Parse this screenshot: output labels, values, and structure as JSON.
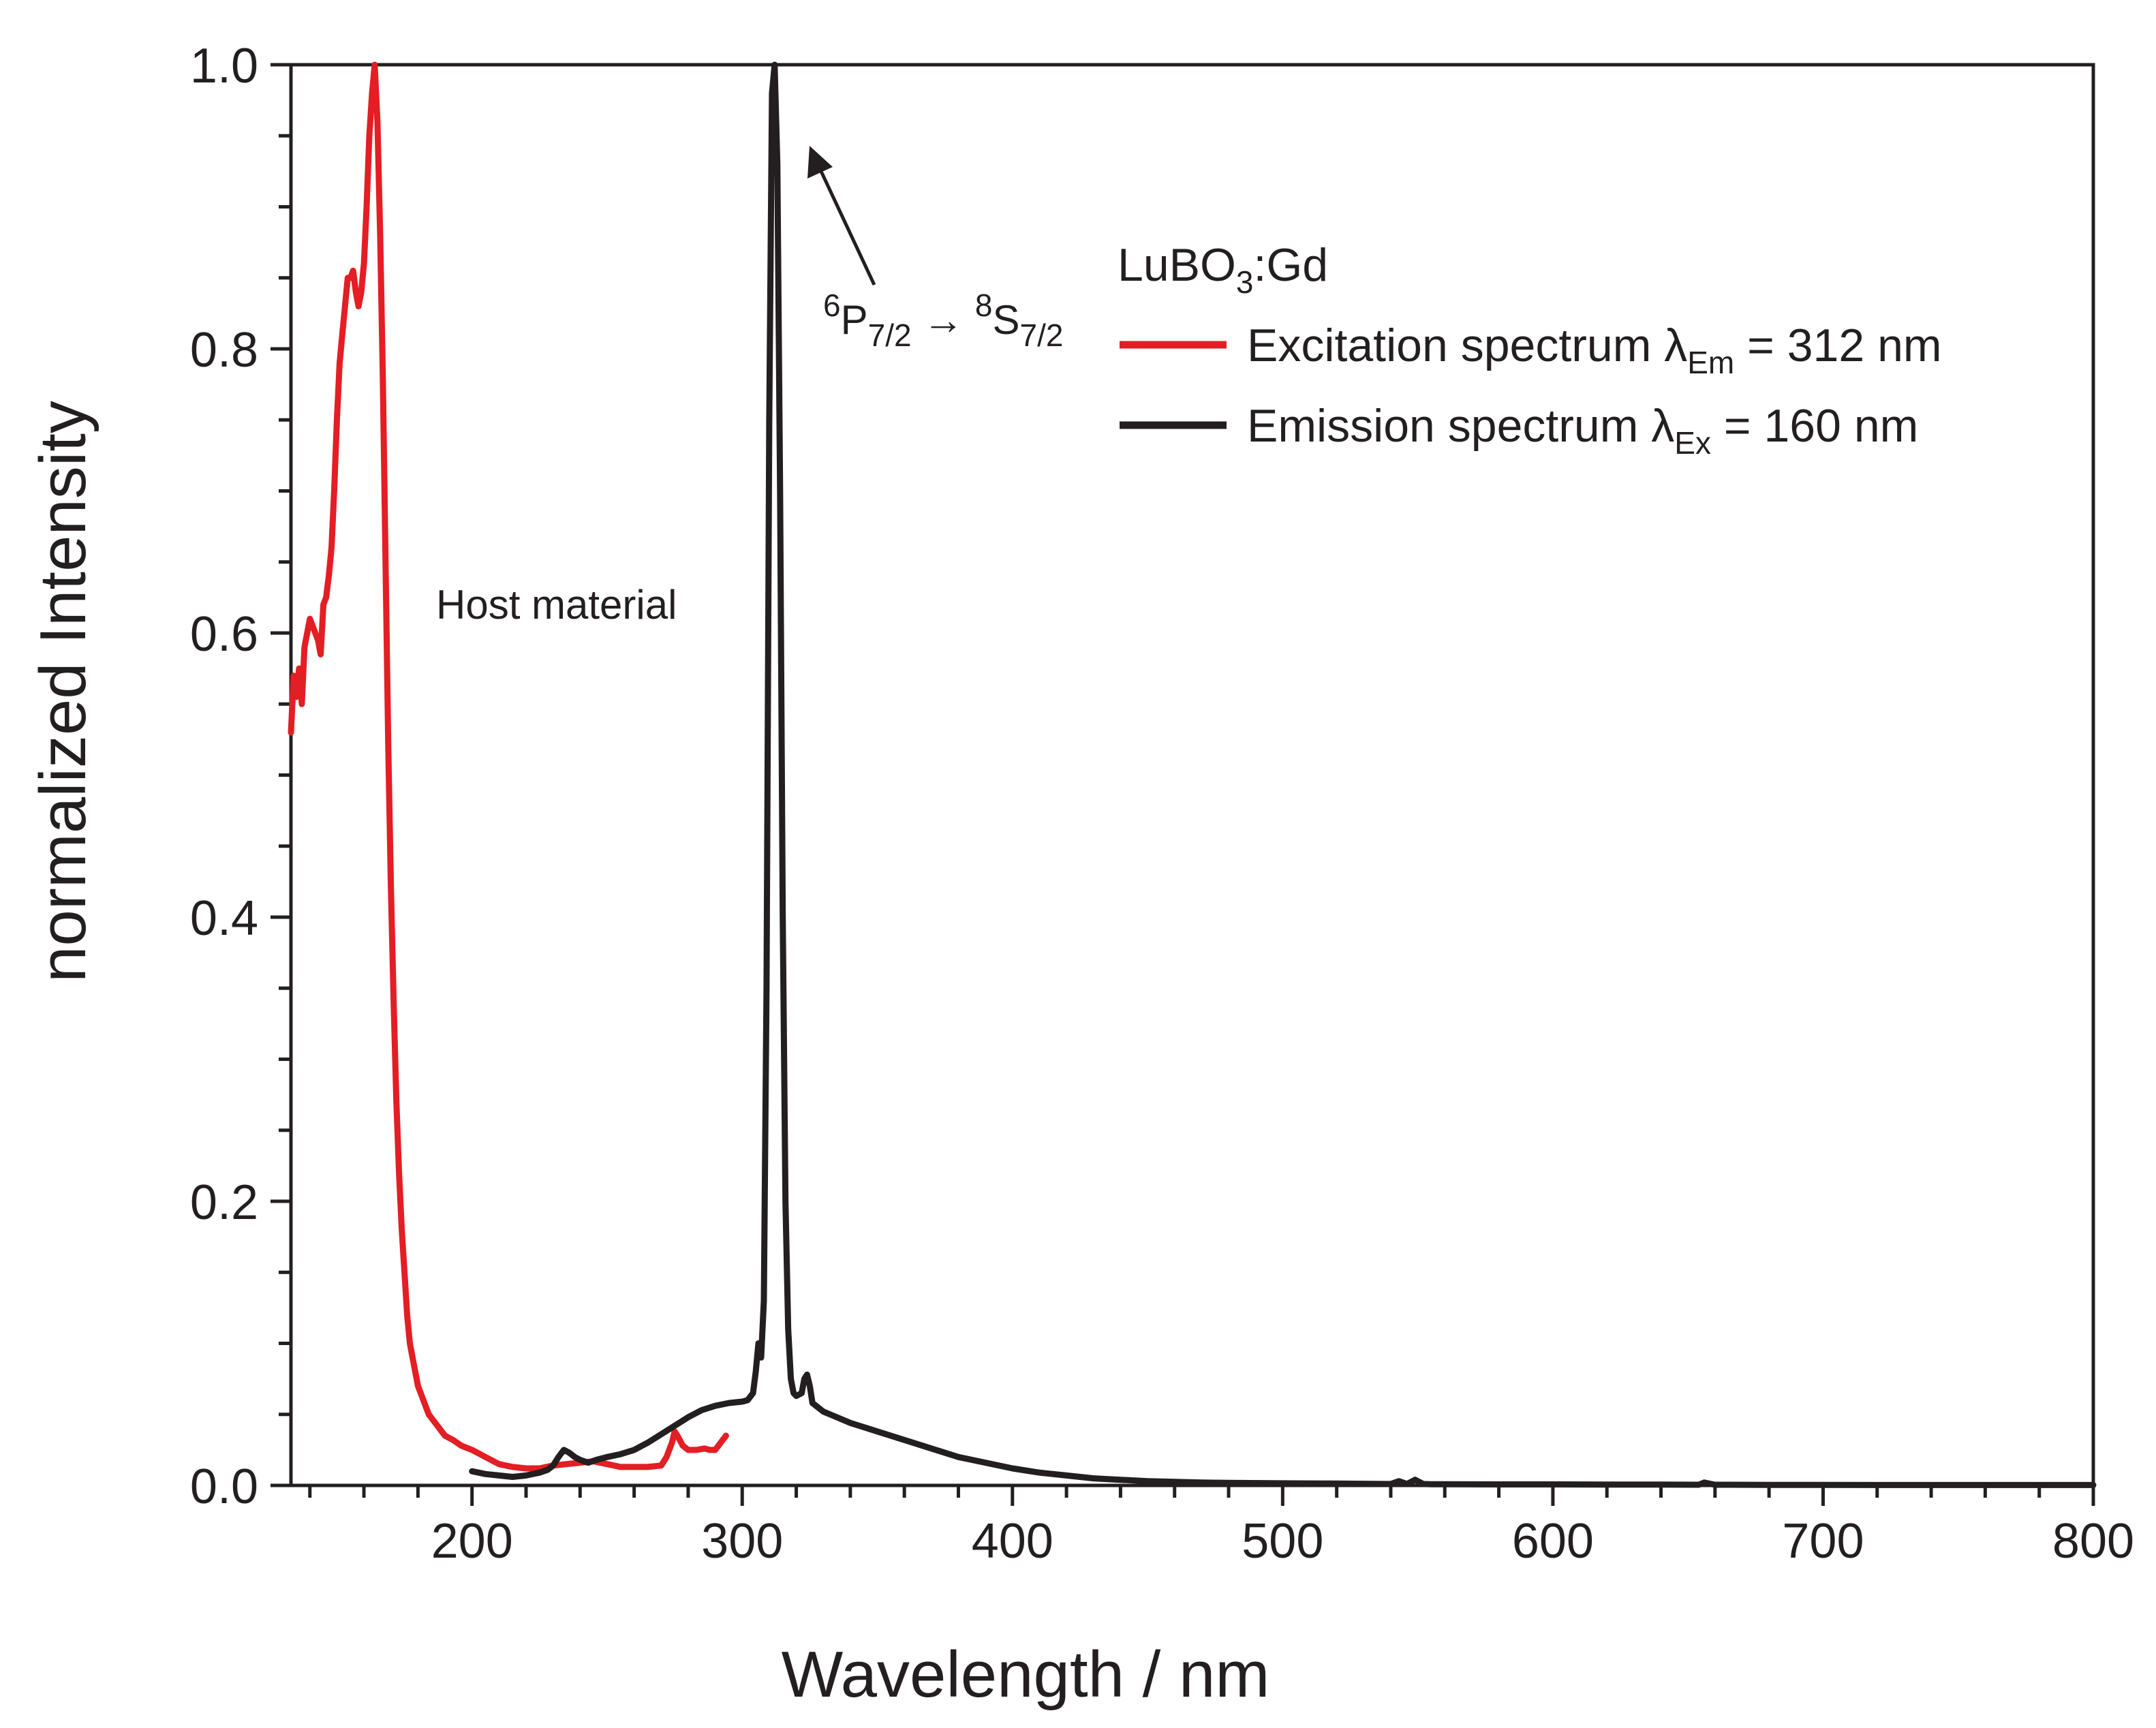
{
  "chart_data": {
    "type": "line",
    "title": "",
    "xlabel": "Wavelength / nm",
    "ylabel": "normalized Intensity",
    "xlim": [
      133,
      800
    ],
    "ylim": [
      0.0,
      1.0
    ],
    "x_ticks": [
      200,
      300,
      400,
      500,
      600,
      700,
      800
    ],
    "x_tick_labels": [
      "200",
      "300",
      "400",
      "500",
      "600",
      "700",
      "800"
    ],
    "y_ticks": [
      0.0,
      0.2,
      0.4,
      0.6,
      0.8,
      1.0
    ],
    "y_tick_labels": [
      "0.0",
      "0.2",
      "0.4",
      "0.6",
      "0.8",
      "1.0"
    ],
    "grid": false,
    "legend": {
      "placement": "top-right",
      "heading": {
        "main": "LuBO",
        "sub": "3",
        "rest": ":Gd"
      },
      "entries": [
        {
          "prefix": "Excitation spectrum ",
          "lambda": "λ",
          "sub": "Em",
          "suffix": " = 312 nm",
          "color": "#e31e24"
        },
        {
          "prefix": "Emission spectrum ",
          "lambda": "λ",
          "sub": "Ex",
          "suffix": " = 160 nm",
          "color": "#231f20"
        }
      ]
    },
    "annotations": {
      "host": "Host material",
      "transition": {
        "sup1": "6",
        "p": "P",
        "sub1": "7/2",
        "arrow": " → ",
        "sup2": "8",
        "s": "S",
        "sub2": "7/2"
      }
    },
    "series": [
      {
        "color": "#e31e24",
        "x": [
          133,
          134,
          135,
          136,
          137,
          138,
          139,
          140,
          141,
          142,
          143,
          144,
          145,
          146,
          147,
          148,
          149,
          150,
          151,
          152,
          153,
          154,
          155,
          156,
          157,
          158,
          159,
          160,
          161,
          162,
          163,
          164,
          165,
          166,
          167,
          168,
          169,
          170,
          171,
          172,
          173,
          174,
          175,
          176,
          177,
          178,
          179,
          180,
          182,
          184,
          186,
          188,
          190,
          193,
          196,
          200,
          205,
          210,
          215,
          220,
          225,
          230,
          235,
          240,
          245,
          250,
          255,
          260,
          265,
          270,
          272,
          274,
          275,
          276,
          278,
          280,
          283,
          286,
          288,
          290,
          292,
          294
        ],
        "y": [
          0.53,
          0.57,
          0.555,
          0.575,
          0.55,
          0.59,
          0.6,
          0.61,
          0.605,
          0.6,
          0.595,
          0.585,
          0.62,
          0.625,
          0.64,
          0.66,
          0.7,
          0.75,
          0.79,
          0.81,
          0.83,
          0.85,
          0.85,
          0.855,
          0.84,
          0.83,
          0.84,
          0.86,
          0.9,
          0.95,
          0.98,
          1.0,
          0.96,
          0.88,
          0.78,
          0.65,
          0.52,
          0.42,
          0.34,
          0.27,
          0.22,
          0.18,
          0.15,
          0.12,
          0.1,
          0.09,
          0.08,
          0.07,
          0.06,
          0.05,
          0.045,
          0.04,
          0.035,
          0.032,
          0.028,
          0.025,
          0.02,
          0.015,
          0.013,
          0.012,
          0.012,
          0.014,
          0.015,
          0.016,
          0.017,
          0.015,
          0.013,
          0.013,
          0.013,
          0.014,
          0.02,
          0.03,
          0.038,
          0.035,
          0.028,
          0.025,
          0.025,
          0.026,
          0.025,
          0.025,
          0.03,
          0.035
        ]
      },
      {
        "color": "#231f20",
        "x": [
          200,
          205,
          210,
          215,
          220,
          225,
          228,
          230,
          232,
          234,
          236,
          238,
          240,
          243,
          246,
          250,
          255,
          260,
          265,
          270,
          275,
          280,
          285,
          290,
          295,
          300,
          302,
          304,
          305,
          306,
          307,
          308,
          309,
          310,
          311,
          312,
          313,
          314,
          315,
          316,
          317,
          318,
          319,
          320,
          321,
          322,
          323,
          324,
          325,
          326,
          328,
          330,
          335,
          340,
          350,
          360,
          370,
          380,
          390,
          400,
          410,
          420,
          430,
          440,
          450,
          460,
          470,
          480,
          500,
          520,
          540,
          543,
          546,
          549,
          552,
          555,
          560,
          580,
          600,
          620,
          640,
          654,
          656,
          660,
          680,
          700,
          720,
          740,
          760,
          780,
          800
        ],
        "y": [
          0.01,
          0.008,
          0.007,
          0.006,
          0.007,
          0.009,
          0.011,
          0.014,
          0.02,
          0.025,
          0.023,
          0.02,
          0.018,
          0.016,
          0.018,
          0.02,
          0.022,
          0.025,
          0.03,
          0.036,
          0.042,
          0.048,
          0.053,
          0.056,
          0.058,
          0.059,
          0.06,
          0.065,
          0.08,
          0.1,
          0.09,
          0.13,
          0.35,
          0.75,
          0.98,
          1.0,
          0.93,
          0.7,
          0.4,
          0.2,
          0.11,
          0.075,
          0.065,
          0.063,
          0.064,
          0.065,
          0.075,
          0.078,
          0.07,
          0.058,
          0.055,
          0.052,
          0.048,
          0.044,
          0.038,
          0.032,
          0.026,
          0.02,
          0.016,
          0.012,
          0.009,
          0.007,
          0.005,
          0.004,
          0.003,
          0.0025,
          0.002,
          0.0018,
          0.0015,
          0.0013,
          0.001,
          0.003,
          0.001,
          0.004,
          0.001,
          0.0008,
          0.0008,
          0.0007,
          0.0007,
          0.0006,
          0.0006,
          0.0005,
          0.002,
          0.0005,
          0.0004,
          0.0004,
          0.0003,
          0.0003,
          0.0003,
          0.0003,
          0.0003
        ]
      }
    ]
  }
}
